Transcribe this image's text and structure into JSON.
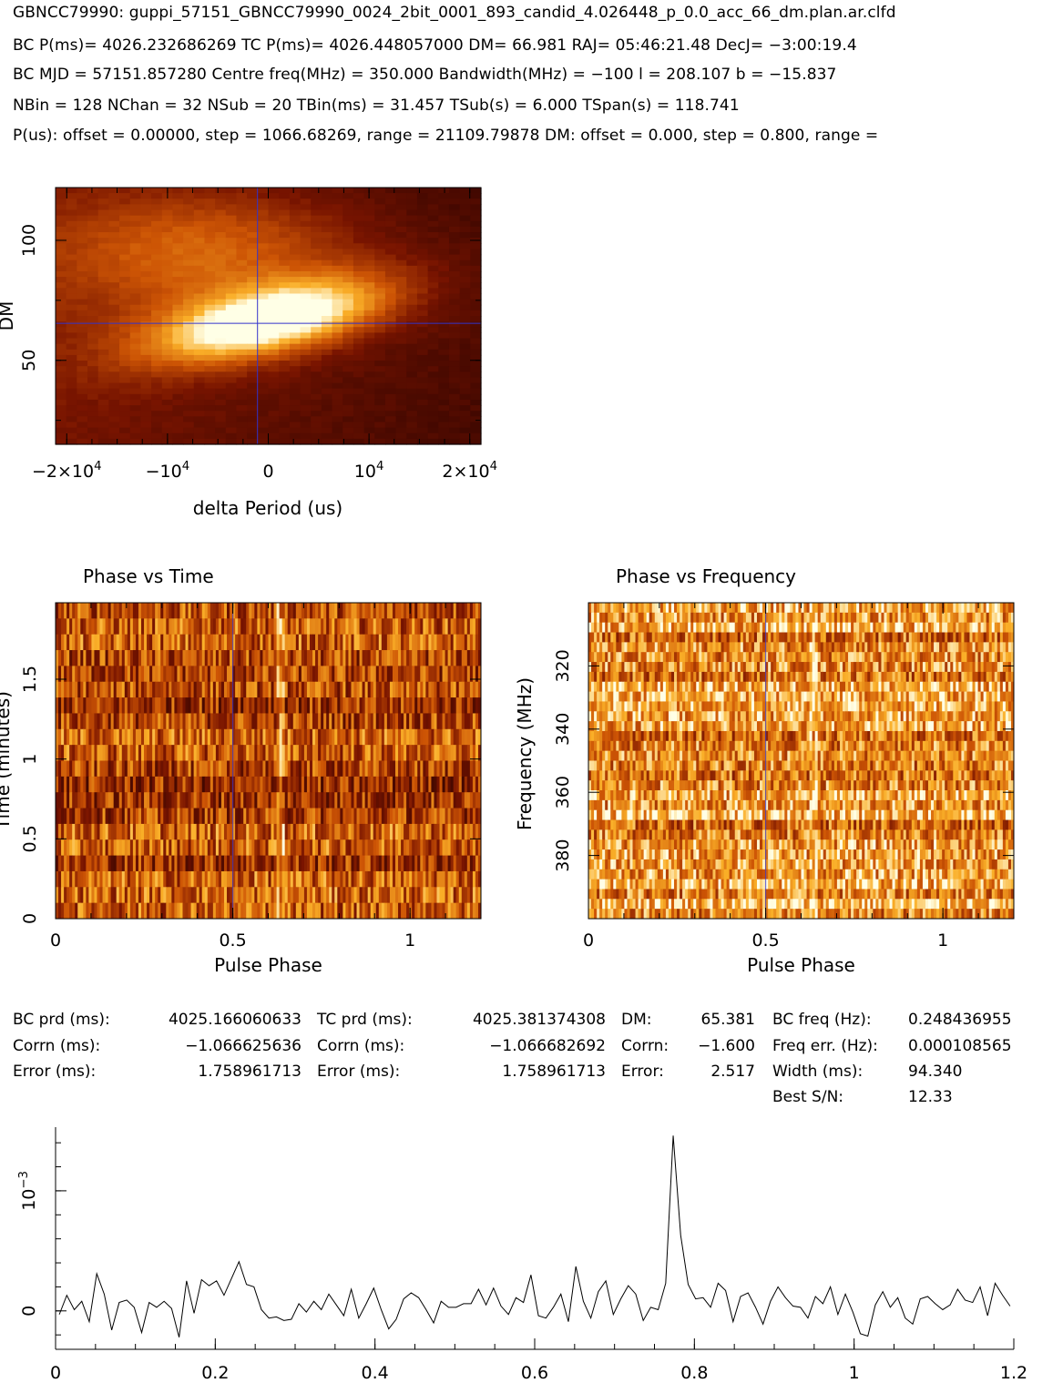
{
  "header": {
    "line1": "GBNCC79990: guppi_57151_GBNCC79990_0024_2bit_0001_893_candid_4.026448_p_0.0_acc_66_dm.plan.ar.clfd",
    "line2": "BC P(ms)= 4026.232686269 TC P(ms)= 4026.448057000 DM= 66.981 RAJ= 05:46:21.48 DecJ= −3:00:19.4",
    "line3": "BC MJD = 57151.857280 Centre freq(MHz) = 350.000 Bandwidth(MHz) = −100 l = 208.107 b = −15.837",
    "line4": "NBin = 128 NChan = 32 NSub = 20 TBin(ms) = 31.457 TSub(s) = 6.000 TSpan(s) = 118.741",
    "line5": "P(us): offset = 0.00000, step = 1066.68269, range = 21109.79878 DM: offset = 0.000, step = 0.800, range ="
  },
  "stats": {
    "bc_prd_label": "BC prd (ms):",
    "bc_prd_value": "4025.166060633",
    "corrn_ms_label_1": "Corrn (ms):",
    "corrn_ms_value_1": "−1.066625636",
    "error_ms_label_1": "Error (ms):",
    "error_ms_value_1": "1.758961713",
    "tc_prd_label": "TC prd (ms):",
    "tc_prd_value": "4025.381374308",
    "corrn_ms_label_2": "Corrn (ms):",
    "corrn_ms_value_2": "−1.066682692",
    "error_ms_label_2": "Error (ms):",
    "error_ms_value_2": "1.758961713",
    "dm_label": "DM:",
    "dm_value": "65.381",
    "dm_corrn_label": "Corrn:",
    "dm_corrn_value": "−1.600",
    "dm_error_label": "Error:",
    "dm_error_value": "2.517",
    "bc_freq_label": "BC freq (Hz):",
    "bc_freq_value": "0.248436955",
    "freq_err_label": "Freq err. (Hz):",
    "freq_err_value": "0.000108565",
    "width_label": "Width (ms):",
    "width_value": "94.340",
    "sn_label": "Best S/N:",
    "sn_value": "12.33"
  },
  "colors": {
    "axes": "#000000",
    "crosshair": "#3333cc",
    "heat_low": "#200000",
    "heat_high": "#ffffe8"
  },
  "chart_data": [
    {
      "id": "dm-period",
      "type": "heatmap",
      "title": "",
      "xlabel": "delta Period (us)",
      "ylabel": "DM",
      "xlim": [
        -21110,
        21110
      ],
      "ylim": [
        15,
        122
      ],
      "xticks": [
        -20000,
        -10000,
        0,
        10000,
        20000
      ],
      "xtick_labels": [
        [
          "−2×10",
          "4"
        ],
        [
          "−10",
          "4"
        ],
        [
          "0",
          ""
        ],
        [
          "10",
          "4"
        ],
        [
          "2×10",
          "4"
        ]
      ],
      "yticks": [
        50,
        100
      ],
      "ytick_labels": [
        "50",
        "100"
      ],
      "crosshair": {
        "x": -1067,
        "y": 65.4
      },
      "peak": {
        "x": 0,
        "y": 66.5
      }
    },
    {
      "id": "phase-time",
      "type": "heatmap",
      "title": "Phase vs Time",
      "xlabel": "Pulse Phase",
      "ylabel": "Time (minutes)",
      "xlim": [
        0,
        1.2
      ],
      "ylim": [
        0,
        1.979
      ],
      "xticks": [
        0,
        0.5,
        1
      ],
      "xtick_labels": [
        "0",
        "0.5",
        "1"
      ],
      "yticks": [
        0,
        0.5,
        1,
        1.5
      ],
      "ytick_labels": [
        "0",
        "0.5",
        "1",
        "1.5"
      ],
      "n_rows": 20,
      "marker_phase": 0.5,
      "pulse_phase": 0.635
    },
    {
      "id": "phase-frequency",
      "type": "heatmap",
      "title": "Phase vs Frequency",
      "xlabel": "Pulse Phase",
      "ylabel": "Frequency (MHz)",
      "xlim": [
        0,
        1.2
      ],
      "ylim": [
        400,
        300
      ],
      "xticks": [
        0,
        0.5,
        1
      ],
      "xtick_labels": [
        "0",
        "0.5",
        "1"
      ],
      "yticks": [
        320,
        340,
        360,
        380
      ],
      "ytick_labels": [
        "320",
        "340",
        "360",
        "380"
      ],
      "n_rows": 32,
      "marker_phase": 0.5,
      "pulse_phase": 0.635
    },
    {
      "id": "profile",
      "type": "line",
      "title": "",
      "xlabel": "",
      "ylabel": "",
      "xlim": [
        0,
        1.2
      ],
      "ylim": [
        -0.00032,
        0.00153
      ],
      "xticks": [
        0,
        0.2,
        0.4,
        0.6,
        0.8,
        1,
        1.2
      ],
      "xtick_labels": [
        "0",
        "0.2",
        "0.4",
        "0.6",
        "0.8",
        "1",
        "1.2"
      ],
      "yticks": [
        0,
        0.001
      ],
      "ytick_labels": [
        [
          "0",
          ""
        ],
        [
          "10",
          "−3"
        ]
      ],
      "x_start": 0.00469,
      "x_step": 0.009375,
      "values": [
        -3e-05,
        0.00013,
        1e-05,
        8e-05,
        -9e-05,
        0.00031,
        0.00014,
        -0.00016,
        7e-05,
        9e-05,
        3e-05,
        -0.00018,
        7e-05,
        3e-05,
        8e-05,
        2e-05,
        -0.00022,
        0.00025,
        -2e-05,
        0.00026,
        0.00021,
        0.00025,
        0.00013,
        0.00027,
        0.00041,
        0.00022,
        0.0002,
        1e-05,
        -6e-05,
        -5e-05,
        -8e-05,
        -7e-05,
        6e-05,
        -1e-05,
        8e-05,
        1e-05,
        0.00014,
        5e-05,
        -4e-05,
        0.00018,
        -6e-05,
        6e-05,
        0.00019,
        1e-05,
        -0.00015,
        -7e-05,
        0.0001,
        0.00015,
        0.00011,
        1e-05,
        -0.0001,
        8e-05,
        3e-05,
        3e-05,
        6e-05,
        6e-05,
        0.00018,
        5e-05,
        0.00019,
        4e-05,
        -3e-05,
        0.00011,
        7e-05,
        0.0003,
        -4e-05,
        -6e-05,
        3e-05,
        0.00014,
        -9e-05,
        0.00037,
        8e-05,
        -6e-05,
        0.00016,
        0.00025,
        -3e-05,
        0.0001,
        0.00021,
        0.00014,
        -8e-05,
        3e-05,
        1e-05,
        0.00023,
        0.00146,
        0.00063,
        0.00022,
        0.0001,
        0.00011,
        3e-05,
        0.00023,
        0.00017,
        -9e-05,
        0.00012,
        0.00015,
        3e-05,
        -0.00011,
        8e-05,
        0.0002,
        0.00011,
        4e-05,
        3e-05,
        -6e-05,
        0.00012,
        6e-05,
        0.0002,
        -3e-05,
        0.00014,
        -1e-05,
        -0.00019,
        -0.00021,
        5e-05,
        0.00016,
        3e-05,
        0.00011,
        -6e-05,
        -0.00011,
        0.0001,
        0.00012,
        6e-05,
        1e-05,
        5e-05,
        0.00018,
        9e-05,
        7e-05,
        0.0002,
        -4e-05,
        0.00023,
        0.00013,
        4e-05
      ]
    }
  ]
}
